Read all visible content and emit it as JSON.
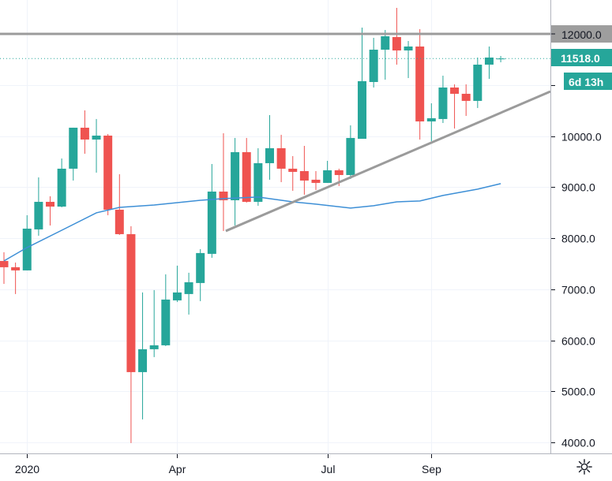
{
  "chart_data": {
    "type": "candlestick",
    "interval": "weekly",
    "y_axis": {
      "ticks": [
        4000,
        5000,
        6000,
        7000,
        8000,
        9000,
        10000,
        11000,
        12000
      ],
      "tick_labels": [
        "4000.0",
        "5000.0",
        "6000.0",
        "7000.0",
        "8000.0",
        "9000.0",
        "10000.0",
        "11000.0",
        "12000.0"
      ],
      "ylim": [
        3950,
        12830
      ]
    },
    "x_axis": {
      "labels": [
        {
          "index": 2,
          "text": "2020"
        },
        {
          "index": 15,
          "text": "Apr"
        },
        {
          "index": 28,
          "text": "Jul"
        },
        {
          "index": 37,
          "text": "Sep"
        }
      ]
    },
    "grid": true,
    "candles": [
      [
        7553,
        7723,
        7105,
        7430
      ],
      [
        7430,
        7522,
        6905,
        7368
      ],
      [
        7368,
        8449,
        7368,
        8186
      ],
      [
        8171,
        9190,
        8047,
        8711
      ],
      [
        8711,
        8820,
        8248,
        8618
      ],
      [
        8618,
        9560,
        8603,
        9360
      ],
      [
        9360,
        10163,
        9128,
        10163
      ],
      [
        10163,
        10502,
        9653,
        9931
      ],
      [
        9931,
        10333,
        9283,
        10008
      ],
      [
        10008,
        10039,
        8449,
        8557
      ],
      [
        8557,
        9252,
        8063,
        8078
      ],
      [
        8078,
        8233,
        3987,
        5376
      ],
      [
        5376,
        6936,
        4450,
        5824
      ],
      [
        5824,
        6982,
        5670,
        5901
      ],
      [
        5901,
        7291,
        5886,
        6797
      ],
      [
        6781,
        7461,
        6750,
        6936
      ],
      [
        6905,
        7322,
        6503,
        7136
      ],
      [
        7121,
        7785,
        6766,
        7708
      ],
      [
        7692,
        9452,
        7615,
        8912
      ],
      [
        8912,
        10054,
        8140,
        8742
      ],
      [
        8742,
        9962,
        8248,
        9684
      ],
      [
        9684,
        9962,
        8696,
        8711
      ],
      [
        8711,
        9761,
        8634,
        9468
      ],
      [
        9468,
        10410,
        9144,
        9761
      ],
      [
        9761,
        10024,
        9097,
        9360
      ],
      [
        9360,
        9607,
        8927,
        9298
      ],
      [
        9313,
        9807,
        8850,
        9128
      ],
      [
        9144,
        9313,
        8943,
        9082
      ],
      [
        9082,
        9514,
        9082,
        9329
      ],
      [
        9329,
        9360,
        9020,
        9236
      ],
      [
        9236,
        10209,
        9159,
        9962
      ],
      [
        9946,
        12124,
        9946,
        11074
      ],
      [
        11058,
        11923,
        10950,
        11691
      ],
      [
        11691,
        12077,
        11104,
        11954
      ],
      [
        11938,
        12510,
        11398,
        11676
      ],
      [
        11676,
        11861,
        11135,
        11753
      ],
      [
        11753,
        12093,
        9931,
        10286
      ],
      [
        10286,
        10641,
        9900,
        10348
      ],
      [
        10333,
        11182,
        10255,
        10950
      ],
      [
        10950,
        11012,
        10147,
        10827
      ],
      [
        10827,
        11012,
        10394,
        10688
      ],
      [
        10688,
        11537,
        10549,
        11398
      ],
      [
        11398,
        11753,
        11120,
        11537
      ],
      [
        11510,
        11568,
        11444,
        11518
      ]
    ],
    "candle_format": "open, high, low, close",
    "moving_average": [
      [
        0,
        7553
      ],
      [
        2,
        7816
      ],
      [
        5,
        8155
      ],
      [
        8,
        8495
      ],
      [
        10,
        8603
      ],
      [
        13,
        8649
      ],
      [
        17,
        8742
      ],
      [
        19,
        8773
      ],
      [
        22,
        8804
      ],
      [
        25,
        8711
      ],
      [
        27,
        8665
      ],
      [
        30,
        8588
      ],
      [
        32,
        8634
      ],
      [
        34,
        8711
      ],
      [
        36,
        8727
      ],
      [
        38,
        8835
      ],
      [
        41,
        8959
      ],
      [
        43,
        9067
      ]
    ],
    "horizontal_line": {
      "price": 12000,
      "label": "12000.0"
    },
    "trendline": {
      "from": [
        19.2,
        8140
      ],
      "to": [
        47.3,
        10873
      ]
    },
    "last_price": {
      "price": 11518,
      "label": "11518.0"
    },
    "countdown_label": "6d 13h",
    "colors": {
      "up": "#26a69a",
      "down": "#ef5350",
      "ma": "#3d8fd6",
      "lines": "#9b9b9b",
      "grid": "#f0f3fa"
    }
  },
  "icons": {
    "settings": "gear-icon"
  }
}
